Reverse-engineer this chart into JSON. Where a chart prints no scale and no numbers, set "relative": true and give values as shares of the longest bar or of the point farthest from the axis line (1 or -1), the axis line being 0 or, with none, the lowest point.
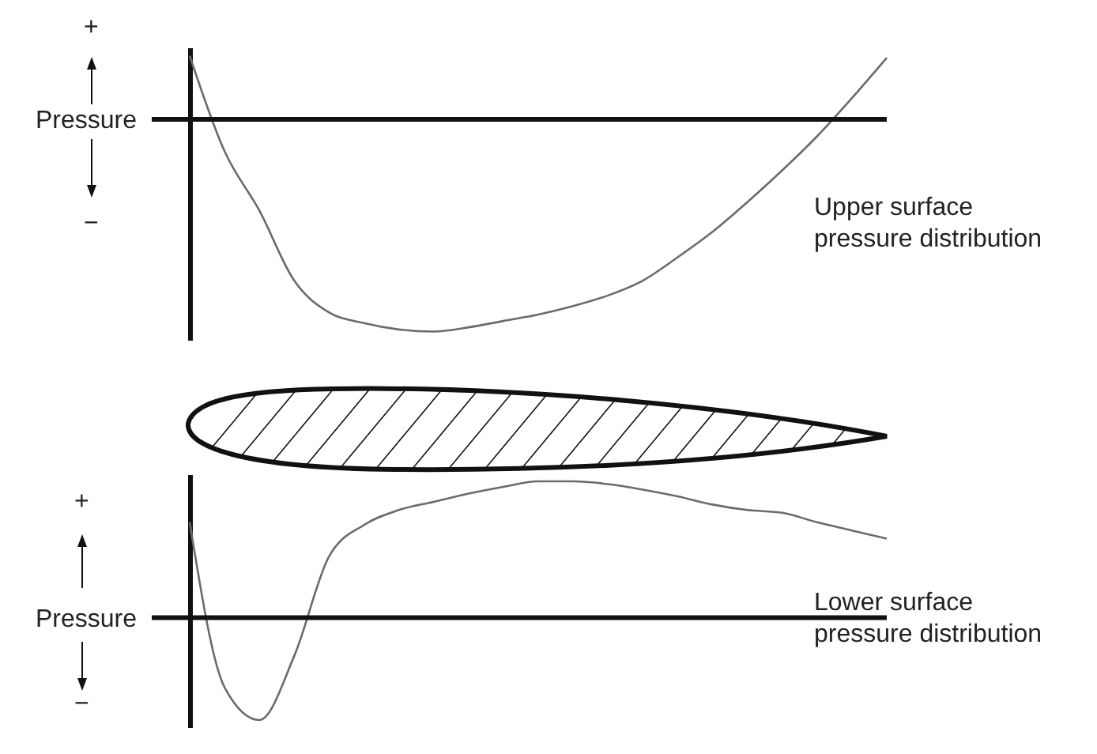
{
  "chart_data": [
    {
      "type": "line",
      "relative": true,
      "ylabel": "Pressure",
      "color": "#6b6b6b",
      "categories": [
        null,
        null,
        null,
        null,
        null,
        null,
        null,
        null,
        null,
        null,
        null,
        null,
        null,
        null,
        null,
        null,
        null,
        null,
        null,
        null,
        null
      ],
      "values": [
        0.3,
        -0.15,
        -0.43,
        -0.76,
        -0.91,
        -0.96,
        -0.99,
        -1,
        -0.98,
        -0.95,
        -0.92,
        -0.88,
        -0.83,
        -0.76,
        -0.65,
        -0.53,
        -0.39,
        -0.24,
        -0.08,
        0.1,
        0.29
      ],
      "annotations": [
        "+",
        "−",
        "Upper surface\npressure distribution"
      ]
    },
    {
      "type": "line",
      "relative": true,
      "ylabel": "Pressure",
      "color": "#6b6b6b",
      "categories": [
        null,
        null,
        null,
        null,
        null,
        null,
        null,
        null,
        null,
        null,
        null,
        null,
        null,
        null,
        null,
        null,
        null,
        null,
        null,
        null,
        null
      ],
      "values": [
        0.7,
        -0.51,
        -0.75,
        -0.28,
        0.45,
        0.68,
        0.79,
        0.85,
        0.91,
        0.96,
        1,
        1,
        0.98,
        0.94,
        0.89,
        0.83,
        0.79,
        0.77,
        0.7,
        0.64,
        0.58
      ],
      "annotations": [
        "+",
        "−",
        "Lower surface\npressure distribution"
      ]
    }
  ]
}
